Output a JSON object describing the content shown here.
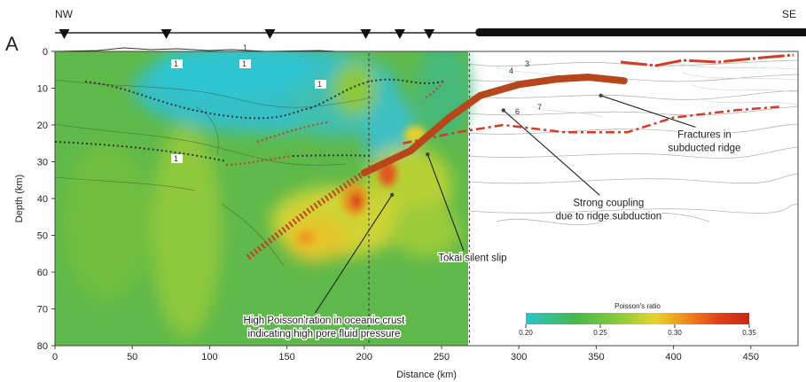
{
  "panel_label": "A",
  "direction": {
    "left": "NW",
    "right": "SE"
  },
  "chart_data": {
    "type": "heatmap",
    "title": "",
    "xlabel": "Distance (km)",
    "ylabel": "Depth (km)",
    "xlim": [
      0,
      490
    ],
    "ylim": [
      80,
      0
    ],
    "x_ticks": [
      0,
      50,
      100,
      150,
      200,
      250,
      300,
      350,
      400,
      450
    ],
    "y_ticks": [
      0,
      10,
      20,
      30,
      40,
      50,
      60,
      70,
      80
    ],
    "grid": false,
    "model_extent_km": 268,
    "colorbar": {
      "title": "Poisson's ratio",
      "range": [
        0.2,
        0.35
      ],
      "tick_labels": [
        "0.20",
        "0.25",
        "0.30",
        "0.35"
      ],
      "colors": [
        "#2ec4cf",
        "#46b84a",
        "#8dca3a",
        "#e8d42a",
        "#ef8a1c",
        "#e3401a",
        "#c42a14"
      ]
    },
    "station_markers_km": [
      6,
      72,
      139,
      201,
      223,
      242
    ],
    "obs_array_range_km": [
      272,
      490
    ],
    "dashed_vertical_lines_km": [
      203,
      268
    ],
    "contour_labels": [
      "1",
      "1",
      "1",
      "1",
      "1",
      "3",
      "4",
      "6",
      "7"
    ],
    "plate_interface_km": [
      [
        125,
        56
      ],
      [
        165,
        43
      ],
      [
        200,
        33
      ],
      [
        230,
        27
      ],
      [
        255,
        18
      ],
      [
        275,
        12
      ],
      [
        300,
        9
      ],
      [
        325,
        7.5
      ],
      [
        345,
        7
      ],
      [
        368,
        8
      ]
    ],
    "moho_km": [
      [
        225,
        25
      ],
      [
        260,
        22
      ],
      [
        290,
        20
      ],
      [
        330,
        22
      ],
      [
        370,
        22
      ],
      [
        400,
        18
      ],
      [
        440,
        16
      ],
      [
        470,
        15
      ]
    ],
    "annotations": [
      {
        "lines": [
          "Fractures in",
          "subducted ridge"
        ],
        "x": 420,
        "y": 23.5,
        "arrow_to": [
          353,
          12
        ]
      },
      {
        "lines": [
          "Strong coupling",
          "due to ridge subduction"
        ],
        "x": 358,
        "y": 42,
        "arrow_to": [
          290,
          16
        ]
      },
      {
        "lines": [
          "Tokai silent slip"
        ],
        "x": 270,
        "y": 57,
        "arrow_to": [
          241,
          28
        ]
      },
      {
        "lines": [
          "High Poisson'ration in oceanic crust",
          "indicating high pore fluid pressure"
        ],
        "x": 174,
        "y": 74,
        "arrow_to": [
          218,
          39
        ]
      }
    ]
  }
}
